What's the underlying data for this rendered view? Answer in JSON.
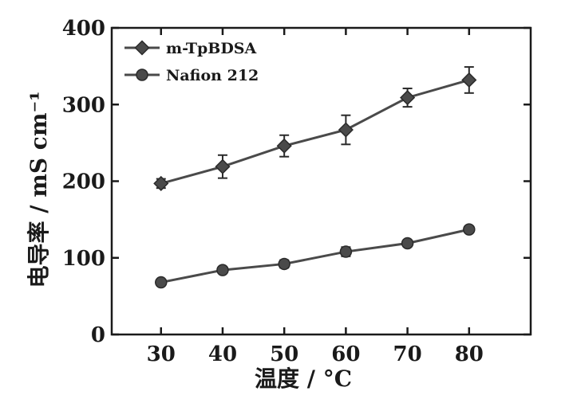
{
  "chart_data": {
    "type": "line",
    "xlabel": "温度 / °C",
    "ylabel": "电导率 / mS cm⁻¹",
    "x": [
      30,
      40,
      50,
      60,
      70,
      80
    ],
    "xlim": [
      22,
      90
    ],
    "ylim": [
      0,
      400
    ],
    "xticks": [
      30,
      40,
      50,
      60,
      70,
      80
    ],
    "yticks": [
      0,
      100,
      200,
      300,
      400
    ],
    "grid": false,
    "legend_position": "top-left",
    "series": [
      {
        "name": "m-TpBDSA",
        "marker": "diamond",
        "color": "#4a4a4a",
        "values": [
          197,
          219,
          246,
          267,
          309,
          332
        ],
        "errors": [
          6,
          15,
          14,
          19,
          12,
          17
        ]
      },
      {
        "name": "Nafion 212",
        "marker": "circle",
        "color": "#4a4a4a",
        "values": [
          68,
          84,
          92,
          108,
          119,
          137
        ],
        "errors": [
          3,
          4,
          5,
          6,
          4,
          4
        ]
      }
    ]
  }
}
